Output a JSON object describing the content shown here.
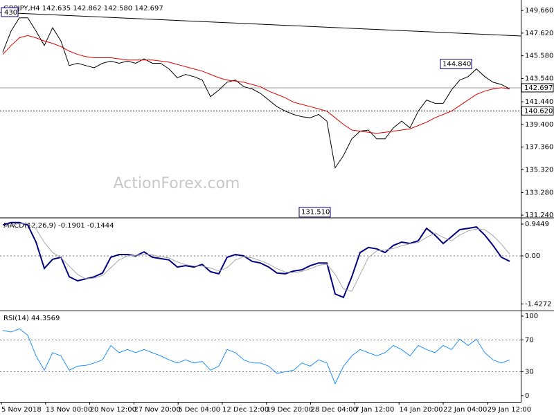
{
  "watermark": "ActionForex.com",
  "chart_data": [
    {
      "type": "line",
      "title": "GBPJPY,H4  142.635 142.862 142.580 142.697",
      "corner_label": "430",
      "ylim": [
        131.12,
        150.41
      ],
      "yticks": [
        {
          "value": 149.66,
          "label": "149.660"
        },
        {
          "value": 147.62,
          "label": "147.620"
        },
        {
          "value": 145.58,
          "label": "145.580"
        },
        {
          "value": 143.54,
          "label": "143.540"
        },
        {
          "value": 141.44,
          "label": "141.440"
        },
        {
          "value": 139.4,
          "label": "139.400"
        },
        {
          "value": 137.36,
          "label": "137.360"
        },
        {
          "value": 135.32,
          "label": "135.320"
        },
        {
          "value": 133.28,
          "label": "133.280"
        },
        {
          "value": 131.24,
          "label": "131.240"
        }
      ],
      "hlines": [
        142.697,
        {
          "value": 140.62,
          "label": "140.620"
        }
      ],
      "annotations": [
        {
          "value": 144.84,
          "label": "144.840"
        },
        {
          "value": 131.51,
          "label": "131.510"
        }
      ],
      "series": [
        {
          "color": "#000000",
          "values": [
            145.9,
            147.8,
            149.0,
            149.0,
            147.8,
            146.5,
            148.1,
            146.9,
            144.7,
            144.9,
            144.7,
            144.5,
            144.9,
            145.1,
            144.9,
            145.1,
            144.9,
            145.3,
            144.9,
            144.9,
            144.4,
            143.6,
            143.9,
            143.7,
            143.4,
            141.9,
            142.5,
            143.2,
            143.4,
            142.8,
            142.6,
            142.2,
            141.6,
            141.0,
            140.6,
            140.3,
            140.1,
            140.0,
            140.3,
            139.7,
            135.5,
            136.6,
            138.1,
            138.8,
            138.9,
            138.1,
            138.1,
            139.1,
            139.7,
            139.1,
            140.6,
            141.6,
            141.3,
            141.3,
            142.5,
            143.4,
            143.7,
            144.4,
            143.7,
            143.2,
            143.0,
            142.6
          ]
        },
        {
          "color": "#e00000",
          "values": [
            145.7,
            146.5,
            147.2,
            147.4,
            147.2,
            146.9,
            146.7,
            146.4,
            146.0,
            145.7,
            145.5,
            145.4,
            145.4,
            145.4,
            145.3,
            145.2,
            145.2,
            145.2,
            145.2,
            145.1,
            145.0,
            144.8,
            144.6,
            144.4,
            144.2,
            143.9,
            143.6,
            143.4,
            143.3,
            143.2,
            143.0,
            142.8,
            142.4,
            142.1,
            141.8,
            141.4,
            141.2,
            141.0,
            140.8,
            140.6,
            140.0,
            139.4,
            138.9,
            138.8,
            138.7,
            138.6,
            138.7,
            138.8,
            138.9,
            139.0,
            139.3,
            139.6,
            140.0,
            140.3,
            140.6,
            141.1,
            141.6,
            142.1,
            142.4,
            142.6,
            142.7,
            142.6
          ]
        }
      ]
    },
    {
      "type": "line",
      "title": "MACD(12,26,9) -0.1901 -0.1444",
      "ylim": [
        -1.602,
        1.088
      ],
      "yticks": [
        0.9449,
        {
          "value": 0,
          "label": "0.00"
        },
        -1.4272
      ],
      "series": [
        {
          "color": "#000080",
          "values": [
            0.92,
            0.99,
            0.99,
            0.92,
            0.41,
            -0.37,
            -0.1,
            -0.04,
            -0.62,
            -0.74,
            -0.68,
            -0.62,
            -0.51,
            -0.04,
            0.04,
            0.04,
            0,
            0.12,
            -0.04,
            -0.08,
            -0.12,
            -0.33,
            -0.29,
            -0.33,
            -0.25,
            -0.47,
            -0.53,
            -0.04,
            0.04,
            0,
            -0.16,
            -0.21,
            -0.33,
            -0.51,
            -0.53,
            -0.45,
            -0.41,
            -0.29,
            -0.21,
            -0.21,
            -1.13,
            -1.23,
            -0.62,
            0.1,
            0.25,
            0.21,
            0.1,
            0.31,
            0.41,
            0.37,
            0.45,
            0.82,
            0.62,
            0.37,
            0.57,
            0.78,
            0.82,
            0.86,
            0.62,
            0.31,
            -0.04,
            -0.16
          ]
        },
        {
          "color": "#a8a8a8",
          "values": [
            0.85,
            0.92,
            0.96,
            0.96,
            0.8,
            0.4,
            0.1,
            -0.05,
            -0.3,
            -0.55,
            -0.68,
            -0.66,
            -0.58,
            -0.35,
            -0.12,
            0.0,
            0.02,
            0.05,
            0.03,
            -0.02,
            -0.06,
            -0.18,
            -0.26,
            -0.3,
            -0.3,
            -0.36,
            -0.45,
            -0.35,
            -0.12,
            -0.02,
            -0.06,
            -0.14,
            -0.24,
            -0.38,
            -0.48,
            -0.5,
            -0.46,
            -0.38,
            -0.28,
            -0.24,
            -0.55,
            -0.98,
            -1.05,
            -0.55,
            -0.05,
            0.15,
            0.18,
            0.22,
            0.3,
            0.36,
            0.4,
            0.55,
            0.68,
            0.55,
            0.45,
            0.62,
            0.74,
            0.8,
            0.78,
            0.6,
            0.35,
            0.05
          ]
        }
      ]
    },
    {
      "type": "line",
      "title": "RSI(14) 44.3569",
      "ylim": [
        -7,
        105.2
      ],
      "yticks": [
        100,
        70,
        30,
        0
      ],
      "xticklabels": [
        "5 Nov 2018",
        "13 Nov 00:00",
        "20 Nov 12:00",
        "27 Nov 20:00",
        "5 Dec 04:00",
        "12 Dec 12:00",
        "19 Dec 20:00",
        "28 Dec 04:00",
        "7 Jan 12:00",
        "14 Jan 20:00",
        "22 Jan 04:00",
        "29 Jan 12:00"
      ],
      "series": [
        {
          "color": "#1e90ff",
          "values": [
            82,
            80,
            84,
            76,
            50,
            32,
            54,
            50,
            32,
            37,
            38,
            41,
            45,
            63,
            54,
            58,
            54,
            58,
            54,
            50,
            45,
            41,
            45,
            41,
            43,
            32,
            37,
            58,
            54,
            45,
            41,
            41,
            37,
            28,
            30,
            32,
            41,
            37,
            45,
            41,
            15,
            37,
            50,
            58,
            54,
            50,
            54,
            63,
            58,
            50,
            63,
            58,
            54,
            63,
            58,
            71,
            63,
            71,
            54,
            45,
            41,
            45
          ]
        }
      ]
    }
  ]
}
